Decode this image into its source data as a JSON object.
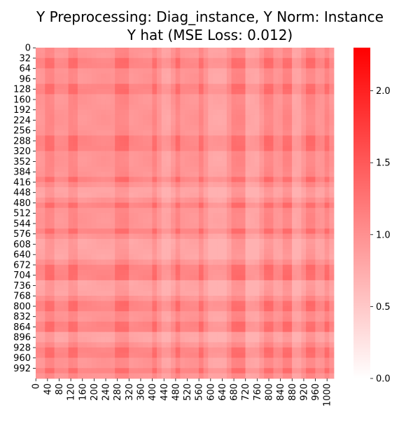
{
  "chart_data": {
    "type": "heatmap",
    "title": "Y Preprocessing: Diag_instance, Y Norm: Instance",
    "subtitle": "Y hat (MSE Loss: 0.012)",
    "xlabel": "",
    "ylabel": "",
    "n": 1024,
    "x_ticks": [
      0,
      40,
      80,
      120,
      160,
      200,
      240,
      280,
      320,
      360,
      400,
      440,
      480,
      520,
      560,
      600,
      640,
      680,
      720,
      760,
      800,
      840,
      880,
      920,
      960,
      1000
    ],
    "y_ticks": [
      0,
      32,
      64,
      96,
      128,
      160,
      192,
      224,
      256,
      288,
      320,
      352,
      384,
      416,
      448,
      480,
      512,
      544,
      576,
      608,
      640,
      672,
      704,
      736,
      768,
      800,
      832,
      864,
      896,
      928,
      960,
      992
    ],
    "colorbar": {
      "range": [
        0.0,
        2.3
      ],
      "ticks": [
        0.0,
        0.5,
        1.0,
        1.5,
        2.0
      ],
      "tick_labels": [
        "0.0",
        "0.5",
        "1.0",
        "1.5",
        "2.0"
      ],
      "color_low": "#ffffff",
      "color_high": "#ff0000"
    },
    "value_range_shown": [
      0.7,
      1.4
    ],
    "low_value_bands": [
      [
        430,
        470
      ],
      [
        590,
        650
      ],
      [
        720,
        760
      ],
      [
        880,
        910
      ]
    ],
    "high_value_bands": [
      [
        40,
        60
      ],
      [
        120,
        150
      ],
      [
        280,
        320
      ],
      [
        400,
        420
      ],
      [
        480,
        500
      ],
      [
        560,
        580
      ],
      [
        680,
        720
      ],
      [
        780,
        820
      ],
      [
        850,
        880
      ],
      [
        930,
        960
      ],
      [
        990,
        1010
      ]
    ]
  }
}
